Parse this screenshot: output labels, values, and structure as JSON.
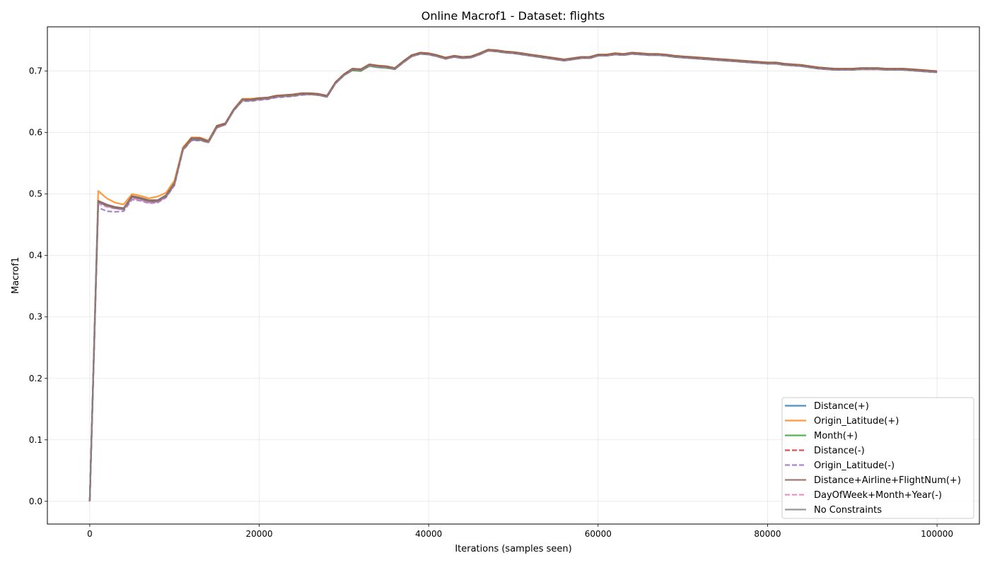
{
  "chart_data": {
    "type": "line",
    "title": "Online Macrof1 - Dataset: flights",
    "xlabel": "Iterations (samples seen)",
    "ylabel": "Macrof1",
    "xlim": [
      -5000,
      105000
    ],
    "ylim": [
      -0.037,
      0.772
    ],
    "xticks": [
      0,
      20000,
      40000,
      60000,
      80000,
      100000
    ],
    "yticks": [
      0.0,
      0.1,
      0.2,
      0.3,
      0.4,
      0.5,
      0.6,
      0.7
    ],
    "xtick_labels": [
      "0",
      "20000",
      "40000",
      "60000",
      "80000",
      "100000"
    ],
    "ytick_labels": [
      "0.0",
      "0.1",
      "0.2",
      "0.3",
      "0.4",
      "0.5",
      "0.6",
      "0.7"
    ],
    "grid": true,
    "legend_position": "lower-right",
    "x": [
      0,
      1000,
      2000,
      3000,
      4000,
      5000,
      6000,
      7000,
      8000,
      9000,
      10000,
      11000,
      12000,
      13000,
      14000,
      15000,
      16000,
      17000,
      18000,
      19000,
      20000,
      21000,
      22000,
      23000,
      24000,
      25000,
      26000,
      27000,
      28000,
      29000,
      30000,
      31000,
      32000,
      33000,
      34000,
      35000,
      36000,
      37000,
      38000,
      39000,
      40000,
      41000,
      42000,
      43000,
      44000,
      45000,
      46000,
      47000,
      48000,
      49000,
      50000,
      51000,
      52000,
      53000,
      54000,
      55000,
      56000,
      57000,
      58000,
      59000,
      60000,
      61000,
      62000,
      63000,
      64000,
      65000,
      66000,
      67000,
      68000,
      69000,
      70000,
      71000,
      72000,
      73000,
      74000,
      75000,
      76000,
      77000,
      78000,
      79000,
      80000,
      81000,
      82000,
      83000,
      84000,
      85000,
      86000,
      87000,
      88000,
      89000,
      90000,
      91000,
      92000,
      93000,
      94000,
      95000,
      96000,
      97000,
      98000,
      99000,
      100000
    ],
    "series": [
      {
        "name": "Distance(+)",
        "color": "#1f77b4",
        "dash": "solid",
        "values": [
          0.0,
          0.488,
          0.482,
          0.478,
          0.476,
          0.496,
          0.493,
          0.489,
          0.489,
          0.497,
          0.517,
          0.573,
          0.589,
          0.589,
          0.585,
          0.609,
          0.614,
          0.637,
          0.653,
          0.653,
          0.655,
          0.656,
          0.659,
          0.66,
          0.661,
          0.663,
          0.663,
          0.662,
          0.659,
          0.681,
          0.694,
          0.703,
          0.702,
          0.71,
          0.708,
          0.707,
          0.704,
          0.715,
          0.725,
          0.729,
          0.728,
          0.725,
          0.721,
          0.724,
          0.722,
          0.723,
          0.728,
          0.734,
          0.733,
          0.731,
          0.73,
          0.728,
          0.726,
          0.724,
          0.722,
          0.72,
          0.718,
          0.72,
          0.722,
          0.722,
          0.726,
          0.726,
          0.728,
          0.727,
          0.729,
          0.728,
          0.727,
          0.727,
          0.726,
          0.724,
          0.723,
          0.722,
          0.721,
          0.72,
          0.719,
          0.718,
          0.717,
          0.716,
          0.715,
          0.714,
          0.713,
          0.713,
          0.711,
          0.71,
          0.709,
          0.707,
          0.705,
          0.704,
          0.703,
          0.703,
          0.703,
          0.704,
          0.704,
          0.704,
          0.703,
          0.703,
          0.703,
          0.702,
          0.701,
          0.7,
          0.699
        ]
      },
      {
        "name": "Origin_Latitude(+)",
        "color": "#ff7f0e",
        "dash": "solid",
        "values": [
          0.0,
          0.505,
          0.493,
          0.486,
          0.483,
          0.5,
          0.497,
          0.493,
          0.496,
          0.502,
          0.522,
          0.576,
          0.592,
          0.592,
          0.587,
          0.611,
          0.615,
          0.638,
          0.655,
          0.655,
          0.656,
          0.657,
          0.66,
          0.661,
          0.662,
          0.664,
          0.664,
          0.663,
          0.66,
          0.682,
          0.695,
          0.704,
          0.703,
          0.711,
          0.709,
          0.708,
          0.705,
          0.716,
          0.726,
          0.73,
          0.729,
          0.726,
          0.722,
          0.725,
          0.723,
          0.724,
          0.729,
          0.735,
          0.734,
          0.732,
          0.731,
          0.729,
          0.727,
          0.725,
          0.723,
          0.721,
          0.719,
          0.721,
          0.723,
          0.723,
          0.727,
          0.727,
          0.729,
          0.728,
          0.73,
          0.729,
          0.728,
          0.728,
          0.727,
          0.725,
          0.724,
          0.723,
          0.722,
          0.721,
          0.72,
          0.719,
          0.718,
          0.717,
          0.716,
          0.715,
          0.714,
          0.714,
          0.712,
          0.711,
          0.71,
          0.708,
          0.706,
          0.705,
          0.704,
          0.704,
          0.704,
          0.705,
          0.705,
          0.705,
          0.704,
          0.704,
          0.704,
          0.703,
          0.702,
          0.701,
          0.7
        ]
      },
      {
        "name": "Month(+)",
        "color": "#2ca02c",
        "dash": "solid",
        "values": [
          0.0,
          0.487,
          0.481,
          0.477,
          0.475,
          0.495,
          0.492,
          0.488,
          0.488,
          0.496,
          0.516,
          0.572,
          0.588,
          0.588,
          0.584,
          0.608,
          0.613,
          0.636,
          0.652,
          0.652,
          0.654,
          0.655,
          0.658,
          0.659,
          0.66,
          0.662,
          0.662,
          0.661,
          0.658,
          0.68,
          0.693,
          0.701,
          0.7,
          0.708,
          0.706,
          0.705,
          0.703,
          0.714,
          0.724,
          0.728,
          0.727,
          0.724,
          0.72,
          0.723,
          0.721,
          0.722,
          0.727,
          0.733,
          0.732,
          0.73,
          0.729,
          0.727,
          0.725,
          0.723,
          0.721,
          0.719,
          0.717,
          0.719,
          0.721,
          0.721,
          0.725,
          0.725,
          0.727,
          0.726,
          0.728,
          0.727,
          0.726,
          0.726,
          0.725,
          0.723,
          0.722,
          0.721,
          0.72,
          0.719,
          0.718,
          0.717,
          0.716,
          0.715,
          0.714,
          0.713,
          0.712,
          0.712,
          0.71,
          0.709,
          0.708,
          0.706,
          0.704,
          0.703,
          0.702,
          0.702,
          0.702,
          0.703,
          0.703,
          0.703,
          0.702,
          0.702,
          0.702,
          0.701,
          0.7,
          0.699,
          0.698
        ]
      },
      {
        "name": "Distance(-)",
        "color": "#d62728",
        "dash": "dashed",
        "values": [
          0.0,
          0.487,
          0.481,
          0.477,
          0.475,
          0.495,
          0.492,
          0.488,
          0.488,
          0.496,
          0.516,
          0.572,
          0.588,
          0.588,
          0.584,
          0.608,
          0.613,
          0.636,
          0.652,
          0.652,
          0.654,
          0.655,
          0.658,
          0.659,
          0.66,
          0.662,
          0.662,
          0.661,
          0.658,
          0.68,
          0.693,
          0.702,
          0.701,
          0.709,
          0.707,
          0.706,
          0.703,
          0.714,
          0.724,
          0.728,
          0.727,
          0.724,
          0.72,
          0.723,
          0.721,
          0.722,
          0.727,
          0.733,
          0.732,
          0.73,
          0.729,
          0.727,
          0.725,
          0.723,
          0.721,
          0.719,
          0.717,
          0.719,
          0.721,
          0.721,
          0.725,
          0.725,
          0.727,
          0.726,
          0.728,
          0.727,
          0.726,
          0.726,
          0.725,
          0.723,
          0.722,
          0.721,
          0.72,
          0.719,
          0.718,
          0.717,
          0.716,
          0.715,
          0.714,
          0.713,
          0.712,
          0.712,
          0.71,
          0.709,
          0.708,
          0.706,
          0.704,
          0.703,
          0.702,
          0.702,
          0.702,
          0.703,
          0.703,
          0.703,
          0.702,
          0.702,
          0.702,
          0.701,
          0.7,
          0.699,
          0.698
        ]
      },
      {
        "name": "Origin_Latitude(-)",
        "color": "#9467bd",
        "dash": "dashed",
        "values": [
          0.0,
          0.478,
          0.472,
          0.471,
          0.472,
          0.491,
          0.489,
          0.485,
          0.486,
          0.494,
          0.514,
          0.571,
          0.587,
          0.587,
          0.584,
          0.608,
          0.613,
          0.636,
          0.651,
          0.651,
          0.653,
          0.654,
          0.657,
          0.658,
          0.659,
          0.661,
          0.662,
          0.661,
          0.658,
          0.68,
          0.693,
          0.702,
          0.701,
          0.709,
          0.707,
          0.706,
          0.703,
          0.714,
          0.724,
          0.728,
          0.727,
          0.724,
          0.72,
          0.723,
          0.721,
          0.722,
          0.727,
          0.733,
          0.732,
          0.73,
          0.729,
          0.727,
          0.725,
          0.723,
          0.721,
          0.719,
          0.717,
          0.719,
          0.721,
          0.721,
          0.725,
          0.725,
          0.727,
          0.726,
          0.728,
          0.727,
          0.726,
          0.726,
          0.725,
          0.723,
          0.722,
          0.721,
          0.72,
          0.719,
          0.718,
          0.717,
          0.716,
          0.715,
          0.714,
          0.713,
          0.712,
          0.712,
          0.71,
          0.709,
          0.708,
          0.706,
          0.704,
          0.703,
          0.702,
          0.702,
          0.702,
          0.703,
          0.703,
          0.703,
          0.702,
          0.702,
          0.702,
          0.701,
          0.7,
          0.699,
          0.698
        ]
      },
      {
        "name": "Distance+Airline+FlightNum(+)",
        "color": "#8c564b",
        "dash": "solid",
        "values": [
          0.0,
          0.489,
          0.483,
          0.479,
          0.477,
          0.497,
          0.494,
          0.49,
          0.49,
          0.498,
          0.518,
          0.574,
          0.591,
          0.591,
          0.586,
          0.611,
          0.615,
          0.638,
          0.654,
          0.654,
          0.656,
          0.657,
          0.66,
          0.661,
          0.662,
          0.664,
          0.664,
          0.663,
          0.66,
          0.682,
          0.695,
          0.704,
          0.703,
          0.711,
          0.709,
          0.708,
          0.705,
          0.716,
          0.726,
          0.73,
          0.729,
          0.726,
          0.722,
          0.725,
          0.723,
          0.724,
          0.729,
          0.735,
          0.734,
          0.732,
          0.731,
          0.729,
          0.727,
          0.725,
          0.723,
          0.721,
          0.719,
          0.721,
          0.723,
          0.723,
          0.727,
          0.727,
          0.729,
          0.728,
          0.73,
          0.729,
          0.728,
          0.728,
          0.727,
          0.725,
          0.724,
          0.723,
          0.722,
          0.721,
          0.72,
          0.719,
          0.718,
          0.717,
          0.716,
          0.715,
          0.714,
          0.714,
          0.712,
          0.711,
          0.71,
          0.708,
          0.706,
          0.705,
          0.704,
          0.704,
          0.704,
          0.705,
          0.705,
          0.705,
          0.704,
          0.704,
          0.704,
          0.703,
          0.702,
          0.701,
          0.7
        ]
      },
      {
        "name": "DayOfWeek+Month+Year(-)",
        "color": "#e377c2",
        "dash": "dashed",
        "values": [
          0.0,
          0.484,
          0.479,
          0.476,
          0.475,
          0.493,
          0.49,
          0.486,
          0.487,
          0.495,
          0.515,
          0.572,
          0.588,
          0.588,
          0.584,
          0.608,
          0.613,
          0.636,
          0.652,
          0.652,
          0.654,
          0.655,
          0.658,
          0.659,
          0.66,
          0.662,
          0.662,
          0.661,
          0.658,
          0.68,
          0.693,
          0.702,
          0.701,
          0.709,
          0.707,
          0.706,
          0.703,
          0.714,
          0.724,
          0.728,
          0.727,
          0.724,
          0.72,
          0.723,
          0.721,
          0.722,
          0.727,
          0.733,
          0.732,
          0.73,
          0.729,
          0.727,
          0.725,
          0.723,
          0.721,
          0.719,
          0.717,
          0.719,
          0.721,
          0.721,
          0.725,
          0.725,
          0.727,
          0.726,
          0.728,
          0.727,
          0.726,
          0.726,
          0.725,
          0.723,
          0.722,
          0.721,
          0.72,
          0.719,
          0.718,
          0.717,
          0.716,
          0.715,
          0.714,
          0.713,
          0.712,
          0.712,
          0.71,
          0.709,
          0.708,
          0.706,
          0.704,
          0.703,
          0.702,
          0.702,
          0.702,
          0.703,
          0.703,
          0.703,
          0.702,
          0.702,
          0.702,
          0.701,
          0.7,
          0.699,
          0.698
        ]
      },
      {
        "name": "No Constraints",
        "color": "#7f7f7f",
        "dash": "solid",
        "values": [
          0.0,
          0.487,
          0.481,
          0.477,
          0.475,
          0.495,
          0.492,
          0.488,
          0.488,
          0.496,
          0.516,
          0.572,
          0.588,
          0.588,
          0.584,
          0.608,
          0.613,
          0.636,
          0.652,
          0.652,
          0.654,
          0.655,
          0.658,
          0.659,
          0.66,
          0.662,
          0.662,
          0.661,
          0.658,
          0.68,
          0.693,
          0.702,
          0.701,
          0.709,
          0.707,
          0.706,
          0.703,
          0.714,
          0.724,
          0.728,
          0.727,
          0.724,
          0.72,
          0.723,
          0.721,
          0.722,
          0.727,
          0.733,
          0.732,
          0.73,
          0.729,
          0.727,
          0.725,
          0.723,
          0.721,
          0.719,
          0.717,
          0.719,
          0.721,
          0.721,
          0.725,
          0.725,
          0.727,
          0.726,
          0.728,
          0.727,
          0.726,
          0.726,
          0.725,
          0.723,
          0.722,
          0.721,
          0.72,
          0.719,
          0.718,
          0.717,
          0.716,
          0.715,
          0.714,
          0.713,
          0.712,
          0.712,
          0.71,
          0.709,
          0.708,
          0.706,
          0.704,
          0.703,
          0.702,
          0.702,
          0.702,
          0.703,
          0.703,
          0.703,
          0.702,
          0.702,
          0.702,
          0.701,
          0.7,
          0.699,
          0.698
        ]
      }
    ]
  }
}
